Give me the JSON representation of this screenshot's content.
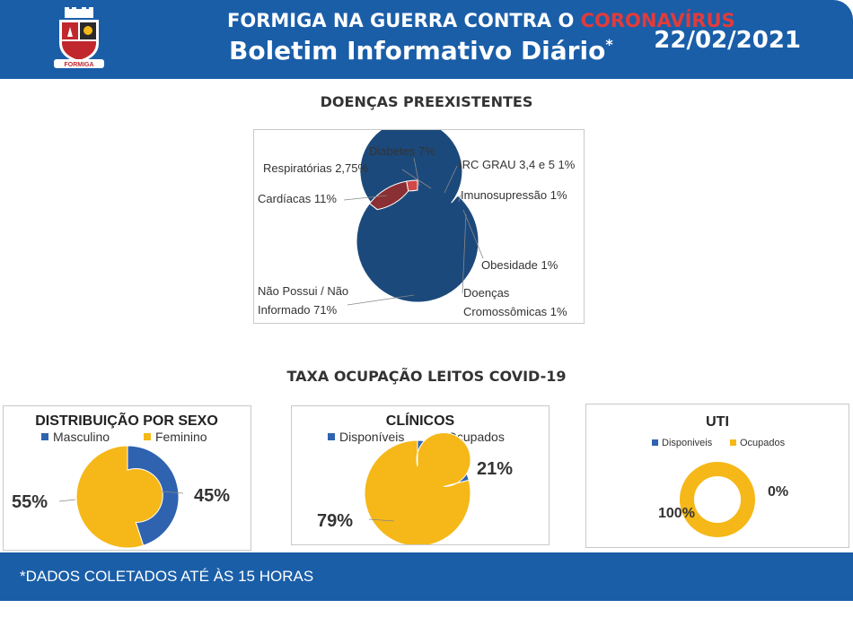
{
  "header": {
    "title_prefix": "FORMIGA NA GUERRA CONTRA O ",
    "title_highlight": "CORONAVÍRUS",
    "subtitle": "Boletim Informativo Diário",
    "subtitle_mark": "*",
    "date": "22/02/2021",
    "logo_text": "FORMIGA",
    "colors": {
      "bar": "#1a5ea8",
      "highlight": "#e23b3b"
    }
  },
  "sections": {
    "preexisting_title": "DOENÇAS PREEXISTENTES",
    "occupancy_title": "TAXA OCUPAÇÃO LEITOS COVID-19"
  },
  "footer": {
    "note": "*DADOS COLETADOS ATÉ ÀS 15 HORAS"
  },
  "chart_data": [
    {
      "type": "pie",
      "variant": "doughnut",
      "title": "DOENÇAS PREEXISTENTES",
      "slices": [
        {
          "label": "Diabetes 7%",
          "value": 7,
          "color": "#3d7bbf"
        },
        {
          "label": "IRC GRAU 3,4 e 5 1%",
          "value": 1,
          "color": "#d9c3c3"
        },
        {
          "label": "Imunosupressão 1%",
          "value": 1,
          "color": "#f3d230"
        },
        {
          "label": "Obesidade 1%",
          "value": 1,
          "color": "#5a6b7c"
        },
        {
          "label": "Doenças Cromossômicas 1%",
          "value": 1,
          "color": "#c7d4e2"
        },
        {
          "label": "Não Possui / Não Informado 71%",
          "value": 71,
          "color": "#1c497b"
        },
        {
          "label": "Cardíacas 11%",
          "value": 11,
          "color": "#8a2f33"
        },
        {
          "label": "Respiratórias 2,75%",
          "value": 2.75,
          "color": "#d04848"
        }
      ]
    },
    {
      "type": "pie",
      "variant": "doughnut",
      "title": "DISTRIBUIÇÃO POR SEXO",
      "legend": [
        "Masculino",
        "Feminino"
      ],
      "legend_position": "top",
      "slices": [
        {
          "name": "Masculino",
          "value": 45,
          "label": "45%",
          "color": "#2f63b0"
        },
        {
          "name": "Feminino",
          "value": 55,
          "label": "55%",
          "color": "#f5b818"
        }
      ]
    },
    {
      "type": "pie",
      "variant": "doughnut",
      "title": "CLÍNICOS",
      "legend": [
        "Disponíveis",
        "Ocupados"
      ],
      "legend_position": "top",
      "slices": [
        {
          "name": "Disponíveis",
          "value": 21,
          "label": "21%",
          "color": "#2f63b0"
        },
        {
          "name": "Ocupados",
          "value": 79,
          "label": "79%",
          "color": "#f5b818"
        }
      ]
    },
    {
      "type": "pie",
      "variant": "doughnut",
      "title": "UTI",
      "legend": [
        "Disponiveis",
        "Ocupados"
      ],
      "legend_position": "top",
      "slices": [
        {
          "name": "Disponiveis",
          "value": 0,
          "label": "0%",
          "color": "#2f63b0"
        },
        {
          "name": "Ocupados",
          "value": 100,
          "label": "100%",
          "color": "#f5b818"
        }
      ]
    }
  ]
}
